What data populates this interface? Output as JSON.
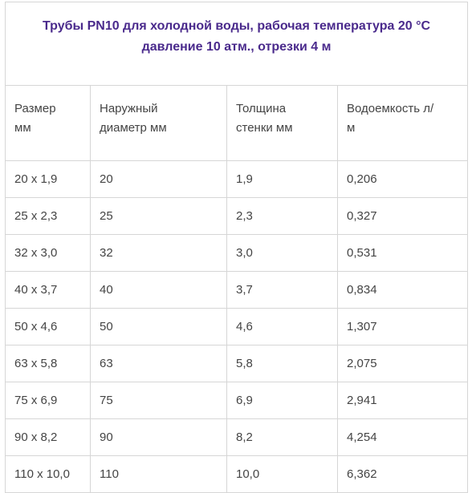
{
  "title": {
    "line1": "Трубы PN10 для холодной воды, рабочая температура 20 °C",
    "line2": "давление 10 атм., отрезки 4 м"
  },
  "colors": {
    "title": "#4a2a8c",
    "text": "#444444",
    "border": "#d6d6d6"
  },
  "headers": [
    {
      "line1": "Размер",
      "line2": "мм"
    },
    {
      "line1": "Наружный",
      "line2": "диаметр мм"
    },
    {
      "line1": "Толщина",
      "line2": "стенки мм"
    },
    {
      "line1": "Водоемкость л/",
      "line2": "м"
    }
  ],
  "rows": [
    [
      "20 x 1,9",
      "20",
      "1,9",
      "0,206"
    ],
    [
      "25 x 2,3",
      "25",
      "2,3",
      "0,327"
    ],
    [
      "32 x 3,0",
      "32",
      "3,0",
      "0,531"
    ],
    [
      "40 x 3,7",
      "40",
      "3,7",
      "0,834"
    ],
    [
      "50 x 4,6",
      "50",
      "4,6",
      "1,307"
    ],
    [
      "63 x 5,8",
      "63",
      "5,8",
      "2,075"
    ],
    [
      "75 x 6,9",
      "75",
      "6,9",
      "2,941"
    ],
    [
      "90 x 8,2",
      "90",
      "8,2",
      "4,254"
    ],
    [
      "110 x 10,0",
      "110",
      "10,0",
      "6,362"
    ]
  ]
}
